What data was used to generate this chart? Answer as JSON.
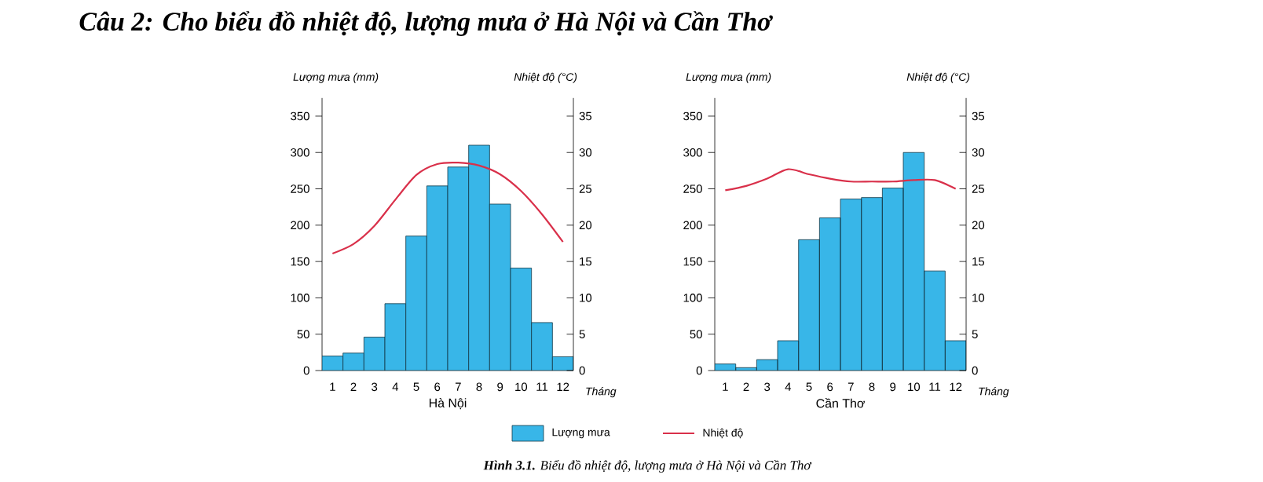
{
  "chart_data": [
    {
      "type": "bar",
      "title": "Hà Nội",
      "xlabel": "Tháng",
      "ylabel": "Lượng mưa (mm)",
      "y2label": "Nhiệt độ (°C)",
      "categories": [
        "1",
        "2",
        "3",
        "4",
        "5",
        "6",
        "7",
        "8",
        "9",
        "10",
        "11",
        "12"
      ],
      "series": [
        {
          "name": "Lượng mưa",
          "color": "#38b6e8",
          "values": [
            20,
            24,
            46,
            92,
            185,
            254,
            280,
            310,
            229,
            141,
            66,
            19
          ]
        },
        {
          "name": "Nhiệt độ",
          "type": "line",
          "axis": "y2",
          "color": "#d9304a",
          "values": [
            16.1,
            17.4,
            19.9,
            23.5,
            26.9,
            28.4,
            28.6,
            28.2,
            27.0,
            24.7,
            21.5,
            17.7
          ]
        }
      ],
      "ylim": [
        0,
        375
      ],
      "yticks": [
        0,
        50,
        100,
        150,
        200,
        250,
        300,
        350
      ],
      "y2lim": [
        0,
        37.5
      ],
      "y2ticks": [
        0,
        5,
        10,
        15,
        20,
        25,
        30,
        35
      ],
      "legend": "bottom",
      "annotations": [
        "Câu 2: Cho biểu đồ nhiệt độ, lượng mưa ở Hà Nội và Cần Thơ",
        "**Hình 3.1.** Biểu đồ nhiệt độ, lượng mưa ở Hà Nội và Cần Thơ"
      ]
    },
    {
      "type": "bar",
      "title": "Cần Thơ",
      "xlabel": "Tháng",
      "ylabel": "Lượng mưa (mm)",
      "y2label": "Nhiệt độ (°C)",
      "categories": [
        "1",
        "2",
        "3",
        "4",
        "5",
        "6",
        "7",
        "8",
        "9",
        "10",
        "11",
        "12"
      ],
      "series": [
        {
          "color": "#38b6e8",
          "values": [
            9,
            4,
            15,
            41,
            180,
            210,
            236,
            238,
            251,
            300,
            137,
            41
          ]
        },
        {
          "type": "line",
          "axis": "y2",
          "color": "#d9304a",
          "values": [
            24.8,
            25.4,
            26.4,
            27.7,
            27.0,
            26.4,
            26.0,
            26.0,
            26.0,
            26.2,
            26.2,
            25.0
          ]
        }
      ],
      "ylim": [
        0,
        375
      ],
      "yticks": [
        0,
        50,
        100,
        150,
        200,
        250,
        300,
        350
      ],
      "y2lim": [
        0,
        37.5
      ],
      "y2ticks": [
        0,
        5,
        10,
        15,
        20,
        25,
        30,
        35
      ]
    }
  ]
}
